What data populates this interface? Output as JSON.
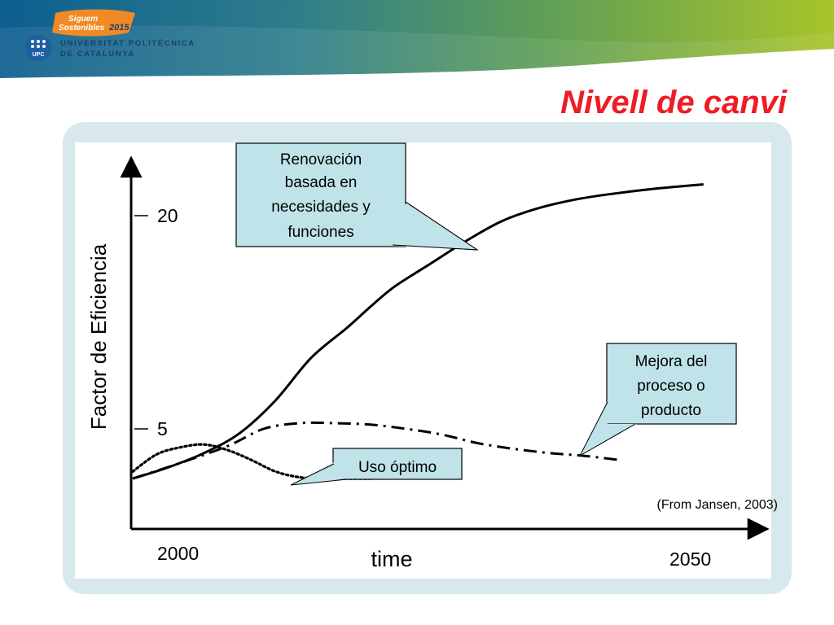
{
  "header": {
    "campaign_line1": "Siguem",
    "campaign_line2": "Sostenibles",
    "campaign_year": "2015",
    "university_line1": "UNIVERSITAT POLITÈCNICA",
    "university_line2": "DE CATALUNYA",
    "logo_text": "UPC"
  },
  "slide": {
    "title": "Nivell de canvi",
    "source_note": "(From Jansen, 2003)"
  },
  "chart_data": {
    "type": "line",
    "ylabel": "Factor de Eficiencia",
    "xlabel": "time",
    "x_ticks": [
      "2000",
      "2050"
    ],
    "y_ticks": [
      "20",
      "5"
    ],
    "series": [
      {
        "style": "solid",
        "label": "Renovación basada en necesidades y funciones",
        "x": [
          2000,
          2003,
          2006,
          2009,
          2012,
          2015,
          2018,
          2020,
          2022,
          2025,
          2028,
          2031,
          2034,
          2037,
          2040,
          2044,
          2048
        ],
        "y": [
          1.5,
          2.3,
          3.3,
          4.7,
          7.0,
          10.0,
          12.1,
          13.6,
          15.0,
          16.6,
          18.2,
          19.6,
          20.5,
          21.1,
          21.5,
          21.9,
          22.2
        ]
      },
      {
        "style": "dash-dot",
        "label": "Mejora del proceso o producto",
        "x": [
          2000,
          2004,
          2008,
          2011,
          2014,
          2017,
          2020,
          2023,
          2026,
          2029,
          2032,
          2035,
          2038,
          2041
        ],
        "y": [
          1.5,
          2.6,
          3.8,
          5.0,
          5.4,
          5.4,
          5.3,
          5.0,
          4.6,
          4.0,
          3.6,
          3.3,
          3.1,
          2.8
        ]
      },
      {
        "style": "dotted",
        "label": "Uso óptimo",
        "x": [
          2000,
          2002,
          2004,
          2006,
          2008,
          2010,
          2012,
          2014,
          2016,
          2018,
          2020
        ],
        "y": [
          2.0,
          3.2,
          3.7,
          3.9,
          3.5,
          2.8,
          2.0,
          1.6,
          1.5,
          1.5,
          1.5
        ]
      }
    ],
    "callouts": [
      {
        "lines": [
          "Renovación",
          "basada en",
          "necesidades y",
          "funciones"
        ]
      },
      {
        "lines": [
          "Mejora del",
          "proceso o",
          "producto"
        ]
      },
      {
        "lines": [
          "Uso óptimo"
        ]
      }
    ],
    "grid": false,
    "legend": "none",
    "colors": {
      "line": "#000000",
      "callout_fill": "#bfe3e8",
      "panel": "#d7e9ec",
      "title": "#ee1c24"
    }
  }
}
